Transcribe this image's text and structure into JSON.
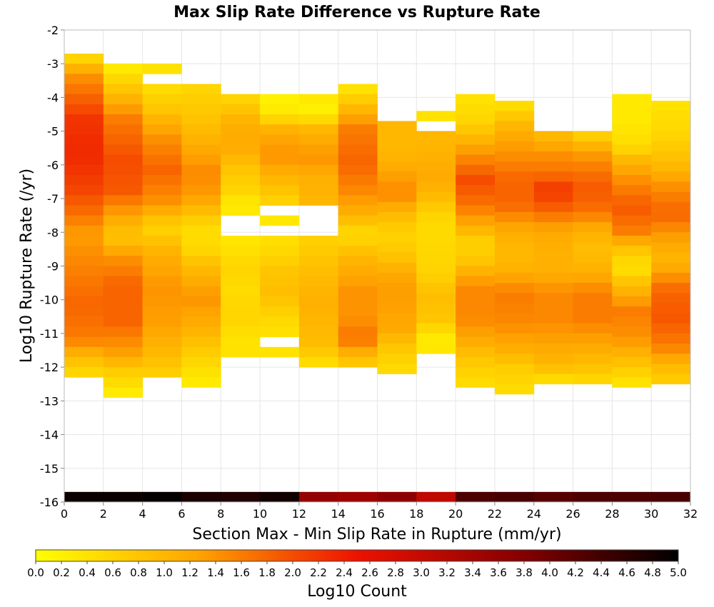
{
  "chart_data": {
    "type": "heatmap",
    "title": "Max Slip Rate Difference vs Rupture Rate",
    "xlabel": "Section Max - Min Slip Rate in Rupture (mm/yr)",
    "ylabel": "Log10 Rupture Rate (/yr)",
    "xlim": [
      0,
      32
    ],
    "ylim": [
      -16,
      -2
    ],
    "x_ticks": [
      "0",
      "2",
      "4",
      "6",
      "8",
      "10",
      "12",
      "14",
      "16",
      "18",
      "20",
      "22",
      "24",
      "26",
      "28",
      "30",
      "32"
    ],
    "y_ticks": [
      "-2",
      "-3",
      "-4",
      "-5",
      "-6",
      "-7",
      "-8",
      "-9",
      "-10",
      "-11",
      "-12",
      "-13",
      "-14",
      "-15",
      "-16"
    ],
    "x_bin_width": 2,
    "y_bin_height": 0.3,
    "grid": true,
    "colorbar": {
      "label": "Log10 Count",
      "range": [
        0,
        5
      ],
      "ticks": [
        "0.0",
        "0.2",
        "0.4",
        "0.6",
        "0.8",
        "1.0",
        "1.2",
        "1.4",
        "1.6",
        "1.8",
        "2.0",
        "2.2",
        "2.4",
        "2.6",
        "2.8",
        "3.0",
        "3.2",
        "3.4",
        "3.6",
        "3.8",
        "4.0",
        "4.2",
        "4.4",
        "4.6",
        "4.8",
        "5.0"
      ],
      "colors": [
        "#ffff00",
        "#ffa500",
        "#ee1100",
        "#880000",
        "#000000"
      ],
      "placement": "bottom"
    },
    "columns": [
      {
        "x": 0,
        "y_top": -2.7,
        "profile": [
          [
            -2.7,
            0.6
          ],
          [
            -3.2,
            1.4
          ],
          [
            -4.5,
            2.2
          ],
          [
            -5.5,
            2.3
          ],
          [
            -6.5,
            2.1
          ],
          [
            -7.3,
            1.7
          ],
          [
            -7.9,
            1.3
          ],
          [
            -8.7,
            1.5
          ],
          [
            -10.0,
            1.8
          ],
          [
            -11.0,
            1.6
          ],
          [
            -11.6,
            0.9
          ],
          [
            -12.1,
            0.5
          ]
        ]
      },
      {
        "x": 2,
        "y_top": -3.0,
        "profile": [
          [
            -3.0,
            0.3
          ],
          [
            -3.6,
            0.8
          ],
          [
            -4.5,
            1.6
          ],
          [
            -5.7,
            2.0
          ],
          [
            -6.6,
            1.9
          ],
          [
            -7.4,
            1.2
          ],
          [
            -8.0,
            0.8
          ],
          [
            -8.6,
            1.4
          ],
          [
            -9.4,
            1.8
          ],
          [
            -10.5,
            1.8
          ],
          [
            -11.4,
            1.3
          ],
          [
            -12.0,
            0.7
          ],
          [
            -12.8,
            0.15
          ]
        ]
      },
      {
        "x": 4,
        "y_top": -3.0,
        "profile": [
          [
            -3.0,
            0.4
          ],
          [
            -3.6,
            0.5
          ],
          [
            -4.2,
            0.8
          ],
          [
            -5.0,
            1.4
          ],
          [
            -6.0,
            1.8
          ],
          [
            -7.0,
            1.4
          ],
          [
            -7.7,
            0.6
          ],
          [
            -8.5,
            1.1
          ],
          [
            -9.5,
            1.4
          ],
          [
            -10.5,
            1.3
          ],
          [
            -11.4,
            1.0
          ],
          [
            -12.0,
            0.7
          ]
        ]
      },
      {
        "x": 6,
        "y_top": -3.6,
        "profile": [
          [
            -3.6,
            0.6
          ],
          [
            -4.4,
            0.8
          ],
          [
            -5.2,
            1.1
          ],
          [
            -6.1,
            1.5
          ],
          [
            -6.8,
            1.3
          ],
          [
            -7.7,
            0.5
          ],
          [
            -8.3,
            0.5
          ],
          [
            -8.8,
            0.9
          ],
          [
            -9.8,
            1.4
          ],
          [
            -10.7,
            1.1
          ],
          [
            -11.6,
            0.6
          ],
          [
            -12.5,
            0.2
          ]
        ]
      },
      {
        "x": 8,
        "y_top": -3.9,
        "profile": [
          [
            -3.9,
            0.6
          ],
          [
            -4.6,
            1.1
          ],
          [
            -5.3,
            1.2
          ],
          [
            -6.0,
            0.8
          ],
          [
            -6.6,
            0.6
          ],
          [
            -7.0,
            0.3
          ],
          [
            -7.9,
            0.3
          ],
          [
            -8.3,
            0.4
          ],
          [
            -8.9,
            0.6
          ],
          [
            -9.6,
            0.5
          ],
          [
            -10.4,
            0.6
          ],
          [
            -11.0,
            0.4
          ],
          [
            -11.4,
            0.4
          ]
        ]
      },
      {
        "x": 10,
        "y_top": -3.9,
        "profile": [
          [
            -3.9,
            0.2
          ],
          [
            -4.3,
            0.3
          ],
          [
            -4.9,
            1.2
          ],
          [
            -5.6,
            1.4
          ],
          [
            -6.3,
            1.0
          ],
          [
            -6.8,
            0.7
          ],
          [
            -7.4,
            0.3
          ],
          [
            -8.3,
            0.5
          ],
          [
            -9.0,
            0.8
          ],
          [
            -9.7,
            0.9
          ],
          [
            -10.3,
            0.6
          ],
          [
            -10.9,
            0.4
          ],
          [
            -11.4,
            0.4
          ]
        ]
      },
      {
        "x": 12,
        "y_top": -3.9,
        "profile": [
          [
            -3.9,
            0.3
          ],
          [
            -4.3,
            0.2
          ],
          [
            -4.8,
            1.0
          ],
          [
            -5.6,
            1.4
          ],
          [
            -6.3,
            1.1
          ],
          [
            -7.0,
            1.0
          ],
          [
            -7.6,
            0.6
          ],
          [
            -8.3,
            0.7
          ],
          [
            -9.0,
            0.9
          ],
          [
            -9.9,
            1.1
          ],
          [
            -10.6,
            1.0
          ],
          [
            -11.2,
            0.9
          ],
          [
            -11.7,
            0.5
          ]
        ]
      },
      {
        "x": 14,
        "y_top": -3.6,
        "profile": [
          [
            -3.6,
            0.4
          ],
          [
            -4.1,
            0.9
          ],
          [
            -4.8,
            1.6
          ],
          [
            -5.8,
            1.8
          ],
          [
            -6.6,
            1.5
          ],
          [
            -7.3,
            1.1
          ],
          [
            -7.9,
            0.5
          ],
          [
            -8.6,
            1.0
          ],
          [
            -9.6,
            1.4
          ],
          [
            -10.4,
            1.4
          ],
          [
            -11.0,
            1.7
          ],
          [
            -11.5,
            1.0
          ],
          [
            -11.8,
            0.7
          ]
        ]
      },
      {
        "x": 16,
        "y_top": -4.7,
        "profile": [
          [
            -4.7,
            1.0
          ],
          [
            -5.5,
            1.0
          ],
          [
            -6.2,
            1.3
          ],
          [
            -6.7,
            1.5
          ],
          [
            -7.3,
            1.0
          ],
          [
            -7.9,
            0.6
          ],
          [
            -8.5,
            0.8
          ],
          [
            -9.3,
            1.3
          ],
          [
            -10.0,
            1.3
          ],
          [
            -10.7,
            1.2
          ],
          [
            -11.4,
            0.7
          ],
          [
            -12.0,
            0.5
          ]
        ]
      },
      {
        "x": 18,
        "y_top": -4.4,
        "profile": [
          [
            -4.4,
            0.4
          ],
          [
            -5.0,
            1.0
          ],
          [
            -5.7,
            1.1
          ],
          [
            -6.3,
            1.2
          ],
          [
            -6.9,
            0.9
          ],
          [
            -7.3,
            0.6
          ],
          [
            -7.8,
            0.5
          ],
          [
            -9.0,
            0.6
          ],
          [
            -9.7,
            0.9
          ],
          [
            -10.4,
            0.8
          ],
          [
            -11.0,
            0.3
          ],
          [
            -11.4,
            0.35
          ]
        ]
      },
      {
        "x": 20,
        "y_top": -3.9,
        "profile": [
          [
            -3.9,
            0.4
          ],
          [
            -4.6,
            0.6
          ],
          [
            -5.4,
            1.3
          ],
          [
            -6.3,
            2.0
          ],
          [
            -7.0,
            1.7
          ],
          [
            -7.6,
            1.2
          ],
          [
            -8.2,
            0.6
          ],
          [
            -8.7,
            0.8
          ],
          [
            -9.5,
            1.5
          ],
          [
            -10.4,
            1.5
          ],
          [
            -11.0,
            1.2
          ],
          [
            -11.6,
            0.8
          ],
          [
            -12.3,
            0.5
          ]
        ]
      },
      {
        "x": 22,
        "y_top": -4.1,
        "profile": [
          [
            -4.1,
            0.5
          ],
          [
            -4.8,
            1.1
          ],
          [
            -5.5,
            1.4
          ],
          [
            -6.3,
            1.8
          ],
          [
            -7.0,
            1.8
          ],
          [
            -7.6,
            1.3
          ],
          [
            -8.2,
            1.0
          ],
          [
            -8.8,
            1.0
          ],
          [
            -9.7,
            1.6
          ],
          [
            -10.5,
            1.5
          ],
          [
            -11.2,
            1.2
          ],
          [
            -11.9,
            0.7
          ],
          [
            -12.5,
            0.5
          ]
        ]
      },
      {
        "x": 24,
        "y_top": -5.0,
        "profile": [
          [
            -5.0,
            1.0
          ],
          [
            -5.5,
            1.4
          ],
          [
            -6.1,
            1.7
          ],
          [
            -6.6,
            2.2
          ],
          [
            -7.2,
            1.8
          ],
          [
            -7.8,
            1.2
          ],
          [
            -8.4,
            1.1
          ],
          [
            -9.0,
            1.1
          ],
          [
            -9.7,
            1.5
          ],
          [
            -10.4,
            1.5
          ],
          [
            -11.0,
            1.3
          ],
          [
            -11.8,
            1.0
          ],
          [
            -12.3,
            0.4
          ]
        ]
      },
      {
        "x": 26,
        "y_top": -5.0,
        "profile": [
          [
            -5.0,
            0.7
          ],
          [
            -5.5,
            1.3
          ],
          [
            -6.1,
            1.7
          ],
          [
            -6.6,
            1.9
          ],
          [
            -7.2,
            1.7
          ],
          [
            -7.8,
            1.1
          ],
          [
            -8.4,
            0.9
          ],
          [
            -9.0,
            1.1
          ],
          [
            -9.7,
            1.6
          ],
          [
            -10.4,
            1.6
          ],
          [
            -11.0,
            1.3
          ],
          [
            -11.8,
            0.9
          ],
          [
            -12.3,
            0.5
          ]
        ]
      },
      {
        "x": 28,
        "y_top": -3.9,
        "profile": [
          [
            -3.9,
            0.3
          ],
          [
            -4.5,
            0.3
          ],
          [
            -5.3,
            0.5
          ],
          [
            -5.8,
            1.1
          ],
          [
            -6.4,
            1.5
          ],
          [
            -7.1,
            1.9
          ],
          [
            -7.8,
            1.6
          ],
          [
            -8.4,
            0.8
          ],
          [
            -8.9,
            0.4
          ],
          [
            -9.4,
            0.9
          ],
          [
            -10.2,
            1.6
          ],
          [
            -11.0,
            1.4
          ],
          [
            -11.8,
            0.8
          ],
          [
            -12.3,
            0.4
          ]
        ]
      },
      {
        "x": 30,
        "y_top": -4.1,
        "profile": [
          [
            -4.1,
            0.4
          ],
          [
            -5.0,
            0.6
          ],
          [
            -5.9,
            1.0
          ],
          [
            -6.6,
            1.5
          ],
          [
            -7.3,
            1.8
          ],
          [
            -8.0,
            1.3
          ],
          [
            -8.7,
            1.0
          ],
          [
            -9.6,
            1.8
          ],
          [
            -10.4,
            1.9
          ],
          [
            -11.2,
            1.6
          ],
          [
            -11.8,
            1.0
          ],
          [
            -12.4,
            0.6
          ]
        ]
      }
    ],
    "missing_cells": [
      {
        "x": 4,
        "y": -3.3
      },
      {
        "x": 8,
        "y": -7.8
      },
      {
        "x": 8,
        "y": -7.5
      },
      {
        "x": 10,
        "y": -7.2
      },
      {
        "x": 10,
        "y": -7.8
      },
      {
        "x": 12,
        "y": -7.8
      },
      {
        "x": 12,
        "y": -7.5
      },
      {
        "x": 12,
        "y": -7.2
      },
      {
        "x": 18,
        "y": -4.7
      },
      {
        "x": 18,
        "y": -8.1
      },
      {
        "x": 18,
        "y": -8.4
      },
      {
        "x": 18,
        "y": -8.7
      },
      {
        "x": 10,
        "y": -11.1
      }
    ],
    "bottom_row": {
      "y": -16,
      "values": [
        4.9,
        4.9,
        4.95,
        4.75,
        4.7,
        4.85,
        3.6,
        3.5,
        3.7,
        3.1,
        4.3,
        4.35,
        4.2,
        4.3,
        4.3,
        4.35
      ]
    }
  }
}
